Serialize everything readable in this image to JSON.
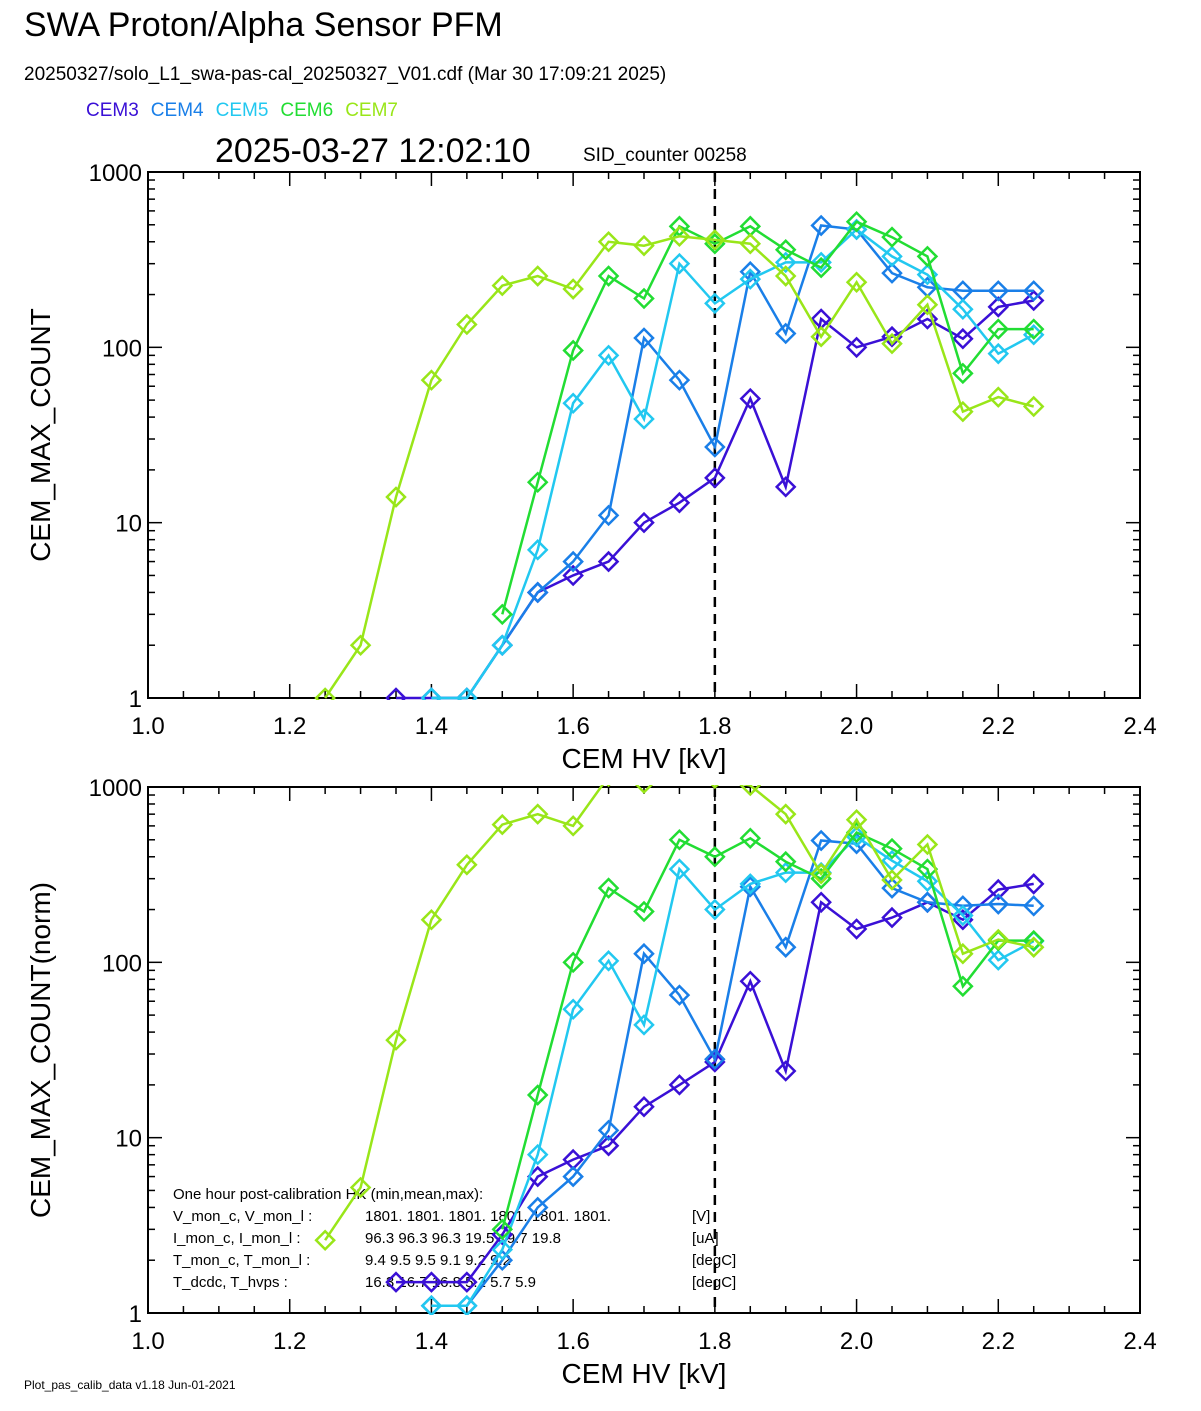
{
  "header": {
    "title": "SWA Proton/Alpha Sensor PFM",
    "subtitle": "20250327/solo_L1_swa-pas-cal_20250327_V01.cdf  (Mar 30 17:09:21 2025)",
    "timestamp": "2025-03-27 12:02:10",
    "sid_counter": "SID_counter 00258"
  },
  "footer": {
    "version": "Plot_pas_calib_data v1.18 Jun-01-2021"
  },
  "colors": {
    "CEM3": "#3a10d6",
    "CEM4": "#1a7fe8",
    "CEM5": "#22c8f0",
    "CEM6": "#22dd33",
    "CEM7": "#99e619"
  },
  "chart_data": [
    {
      "type": "line",
      "xlabel": "CEM HV [kV]",
      "ylabel": "CEM_MAX_COUNT",
      "xlim": [
        1.0,
        2.4
      ],
      "ylim": [
        1,
        1000
      ],
      "yscale": "log",
      "xticks": [
        "1.0",
        "1.2",
        "1.4",
        "1.6",
        "1.8",
        "2.0",
        "2.2",
        "2.4"
      ],
      "yticks": [
        "1",
        "10",
        "100",
        "1000"
      ],
      "vline": 1.8,
      "legend_position": "top-left",
      "series": [
        {
          "name": "CEM3",
          "color": "#3a10d6",
          "x": [
            1.35,
            1.4,
            1.45,
            1.5,
            1.55,
            1.6,
            1.65,
            1.7,
            1.75,
            1.8,
            1.85,
            1.9,
            1.95,
            2.0,
            2.05,
            2.1,
            2.15,
            2.2,
            2.25
          ],
          "y": [
            1,
            1,
            1,
            2,
            4,
            5,
            6,
            10,
            13,
            18,
            51,
            16,
            145,
            100,
            115,
            145,
            112,
            170,
            185
          ]
        },
        {
          "name": "CEM4",
          "color": "#1a7fe8",
          "x": [
            1.4,
            1.45,
            1.5,
            1.55,
            1.6,
            1.65,
            1.7,
            1.75,
            1.8,
            1.85,
            1.9,
            1.95,
            2.0,
            2.05,
            2.1,
            2.15,
            2.2,
            2.25
          ],
          "y": [
            1,
            1,
            2,
            4,
            6,
            11,
            113,
            65,
            27,
            270,
            120,
            495,
            470,
            265,
            220,
            210,
            210,
            210
          ]
        },
        {
          "name": "CEM5",
          "color": "#22c8f0",
          "x": [
            1.4,
            1.45,
            1.5,
            1.55,
            1.6,
            1.65,
            1.7,
            1.75,
            1.8,
            1.85,
            1.9,
            1.95,
            2.0,
            2.05,
            2.1,
            2.15,
            2.2,
            2.25
          ],
          "y": [
            1,
            1,
            2,
            7,
            48,
            90,
            39,
            300,
            178,
            245,
            305,
            305,
            470,
            330,
            260,
            165,
            92,
            118
          ]
        },
        {
          "name": "CEM6",
          "color": "#22dd33",
          "x": [
            1.5,
            1.55,
            1.6,
            1.65,
            1.7,
            1.75,
            1.8,
            1.85,
            1.9,
            1.95,
            2.0,
            2.05,
            2.1,
            2.15,
            2.2,
            2.25
          ],
          "y": [
            3,
            17,
            96,
            255,
            190,
            490,
            390,
            490,
            360,
            285,
            520,
            425,
            330,
            71,
            127,
            127
          ]
        },
        {
          "name": "CEM7",
          "color": "#99e619",
          "x": [
            1.25,
            1.3,
            1.35,
            1.4,
            1.45,
            1.5,
            1.55,
            1.6,
            1.65,
            1.7,
            1.75,
            1.8,
            1.85,
            1.9,
            1.95,
            2.0,
            2.05,
            2.1,
            2.15,
            2.2,
            2.25
          ],
          "y": [
            1,
            2,
            14,
            65,
            135,
            225,
            255,
            215,
            400,
            380,
            430,
            410,
            390,
            255,
            115,
            235,
            105,
            175,
            43,
            52,
            46
          ]
        }
      ]
    },
    {
      "type": "line",
      "xlabel": "CEM HV [kV]",
      "ylabel": "CEM_MAX_COUNT(norm)",
      "xlim": [
        1.0,
        2.4
      ],
      "ylim": [
        1,
        1000
      ],
      "yscale": "log",
      "xticks": [
        "1.0",
        "1.2",
        "1.4",
        "1.6",
        "1.8",
        "2.0",
        "2.2",
        "2.4"
      ],
      "yticks": [
        "1",
        "10",
        "100",
        "1000"
      ],
      "vline": 1.8,
      "annotation": {
        "heading": "One hour post-calibration HK (min,mean,max):",
        "rows": [
          {
            "label": "V_mon_c, V_mon_l :",
            "values": "1801.  1801.  1801.      1801.  1801.  1801.",
            "unit": "[V]"
          },
          {
            "label": "I_mon_c,  I_mon_l :",
            "values": "96.3   96.3   96.3        19.5   19.7   19.8",
            "unit": "[uA]"
          },
          {
            "label": "T_mon_c, T_mon_l :",
            "values": "9.4    9.5    9.5           9.1    9.2    9.2",
            "unit": "[degC]"
          },
          {
            "label": "T_dcdc,    T_hvps :",
            "values": "16.3   16.7   16.8           5.2    5.7    5.9",
            "unit": "[degC]"
          }
        ]
      },
      "series": [
        {
          "name": "CEM3",
          "color": "#3a10d6",
          "x": [
            1.35,
            1.4,
            1.45,
            1.5,
            1.55,
            1.6,
            1.65,
            1.7,
            1.75,
            1.8,
            1.85,
            1.9,
            1.95,
            2.0,
            2.05,
            2.1,
            2.15,
            2.2,
            2.25
          ],
          "y": [
            1.5,
            1.5,
            1.5,
            2.8,
            6,
            7.5,
            9,
            15,
            20,
            27,
            78,
            24,
            220,
            155,
            180,
            220,
            175,
            260,
            280
          ]
        },
        {
          "name": "CEM4",
          "color": "#1a7fe8",
          "x": [
            1.4,
            1.45,
            1.5,
            1.55,
            1.6,
            1.65,
            1.7,
            1.75,
            1.8,
            1.85,
            1.9,
            1.95,
            2.0,
            2.05,
            2.1,
            2.15,
            2.2,
            2.25
          ],
          "y": [
            1.1,
            1.1,
            2,
            4,
            6,
            11,
            112,
            65,
            28,
            270,
            122,
            495,
            475,
            265,
            220,
            210,
            215,
            210
          ]
        },
        {
          "name": "CEM5",
          "color": "#22c8f0",
          "x": [
            1.4,
            1.45,
            1.5,
            1.55,
            1.6,
            1.65,
            1.7,
            1.75,
            1.8,
            1.85,
            1.9,
            1.95,
            2.0,
            2.05,
            2.1,
            2.15,
            2.2,
            2.25
          ],
          "y": [
            1.1,
            1.1,
            2.3,
            8,
            54,
            102,
            44,
            340,
            200,
            280,
            325,
            325,
            520,
            380,
            290,
            185,
            103,
            132
          ]
        },
        {
          "name": "CEM6",
          "color": "#22dd33",
          "x": [
            1.5,
            1.55,
            1.6,
            1.65,
            1.7,
            1.75,
            1.8,
            1.85,
            1.9,
            1.95,
            2.0,
            2.05,
            2.1,
            2.15,
            2.2,
            2.25
          ],
          "y": [
            3,
            17.5,
            100,
            265,
            195,
            500,
            400,
            510,
            375,
            300,
            550,
            445,
            340,
            73,
            133,
            133
          ]
        },
        {
          "name": "CEM7",
          "color": "#99e619",
          "x": [
            1.25,
            1.3,
            1.35,
            1.4,
            1.45,
            1.5,
            1.55,
            1.6,
            1.65,
            1.7,
            1.75,
            1.8,
            1.85,
            1.9,
            1.95,
            2.0,
            2.05,
            2.1,
            2.15,
            2.2,
            2.25
          ],
          "y": [
            2.6,
            5.2,
            36,
            175,
            360,
            610,
            700,
            600,
            1150,
            1050,
            1180,
            1120,
            1020,
            700,
            320,
            650,
            295,
            470,
            112,
            135,
            122
          ]
        }
      ]
    }
  ]
}
